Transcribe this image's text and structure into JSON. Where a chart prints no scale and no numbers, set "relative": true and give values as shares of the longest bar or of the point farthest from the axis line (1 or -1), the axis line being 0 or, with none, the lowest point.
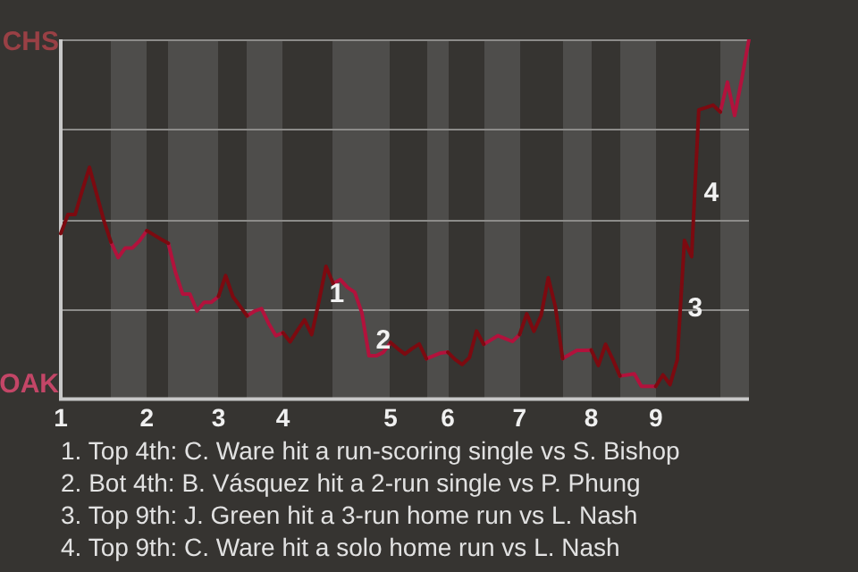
{
  "chart_data": {
    "type": "line",
    "relative": true,
    "categories": [
      "1",
      null,
      null,
      null,
      null,
      null,
      null,
      null,
      null,
      null,
      null,
      null,
      "2",
      null,
      null,
      null,
      null,
      null,
      null,
      null,
      null,
      null,
      "3",
      null,
      null,
      null,
      null,
      null,
      null,
      null,
      null,
      "4",
      null,
      null,
      null,
      null,
      null,
      null,
      null,
      null,
      null,
      null,
      null,
      null,
      null,
      null,
      "5",
      null,
      null,
      null,
      null,
      null,
      null,
      null,
      "6",
      null,
      null,
      null,
      null,
      null,
      null,
      null,
      null,
      null,
      "7",
      null,
      null,
      null,
      null,
      null,
      null,
      null,
      null,
      null,
      "8",
      null,
      null,
      null,
      null,
      null,
      null,
      null,
      null,
      "9",
      null,
      null,
      null,
      null,
      null,
      null,
      null,
      null,
      null,
      null,
      null,
      null,
      null
    ],
    "series": [
      {
        "color": "#7c0a10",
        "values": [
          0.46,
          0.513,
          0.513,
          0.58,
          0.644,
          0.57,
          0.497,
          0.436,
          null,
          null,
          null,
          null,
          0.468,
          0.456,
          0.444,
          0.433,
          null,
          null,
          null,
          null,
          null,
          null,
          0.285,
          0.343,
          0.285,
          0.258,
          0.231,
          null,
          null,
          null,
          null,
          0.184,
          0.159,
          0.19,
          0.22,
          0.179,
          0.27,
          0.369,
          0.321,
          null,
          null,
          null,
          null,
          null,
          null,
          null,
          0.157,
          0.14,
          0.125,
          0.14,
          0.153,
          0.112,
          null,
          null,
          0.13,
          0.11,
          0.096,
          0.115,
          0.189,
          0.152,
          null,
          null,
          null,
          null,
          0.179,
          0.237,
          0.188,
          0.232,
          0.337,
          0.256,
          0.112,
          null,
          null,
          null,
          0.136,
          0.093,
          0.152,
          0.11,
          0.064,
          null,
          null,
          null,
          null,
          0.035,
          0.067,
          0.04,
          0.109,
          0.441,
          0.396,
          0.804,
          0.81,
          0.817,
          0.798,
          null,
          null,
          null,
          null
        ]
      },
      {
        "color": "#b2123c",
        "values": [
          null,
          null,
          null,
          null,
          null,
          null,
          null,
          0.436,
          0.393,
          0.42,
          0.42,
          0.44,
          0.468,
          null,
          null,
          0.433,
          0.352,
          0.292,
          0.292,
          0.245,
          0.269,
          0.269,
          0.285,
          null,
          null,
          null,
          0.231,
          0.244,
          0.251,
          0.21,
          0.176,
          0.184,
          null,
          null,
          null,
          null,
          null,
          null,
          0.321,
          0.332,
          0.31,
          0.297,
          0.24,
          0.12,
          0.12,
          0.13,
          0.157,
          null,
          null,
          null,
          null,
          0.112,
          0.12,
          0.128,
          0.13,
          null,
          null,
          null,
          null,
          0.152,
          0.164,
          0.176,
          0.168,
          0.16,
          0.179,
          null,
          null,
          null,
          null,
          null,
          0.112,
          0.124,
          0.135,
          0.135,
          0.136,
          null,
          null,
          null,
          0.064,
          0.067,
          0.07,
          0.035,
          0.035,
          0.035,
          null,
          null,
          null,
          null,
          null,
          null,
          null,
          null,
          0.798,
          0.881,
          0.788,
          0.89,
          1
        ]
      }
    ],
    "annotations": [
      "CHS",
      "OAK",
      "1",
      "2",
      "3",
      "4",
      "1. Top 4th: C. Ware hit a run-scoring single vs S. Bishop",
      "2. Bot 4th: B. Vásquez hit a 2-run single vs P. Phung",
      "3. Top 9th: J. Green hit a 3-run home run vs L. Nash",
      "4. Top 9th: C. Ware hit a solo home run vs L. Nash"
    ],
    "grid": "y",
    "legend": false,
    "marker": "none",
    "line_style": "solid"
  }
}
